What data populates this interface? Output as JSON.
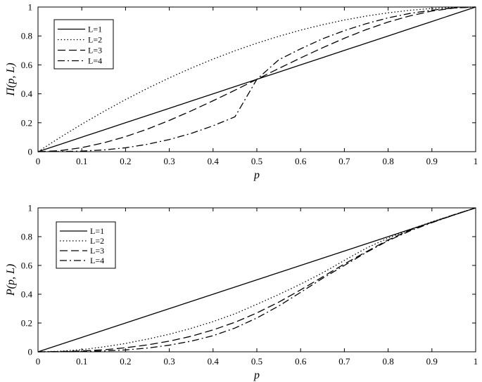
{
  "chart_data": [
    {
      "type": "line",
      "xlabel": "p",
      "ylabel": "Π(p, L)",
      "xlim": [
        0,
        1
      ],
      "ylim": [
        0,
        1
      ],
      "xticks": [
        "0",
        "0.1",
        "0.2",
        "0.3",
        "0.4",
        "0.5",
        "0.6",
        "0.7",
        "0.8",
        "0.9",
        "1"
      ],
      "yticks": [
        "0",
        "0.2",
        "0.4",
        "0.6",
        "0.8",
        "1"
      ],
      "grid": false,
      "legend_position": "top-left",
      "x": [
        0,
        0.05,
        0.1,
        0.15,
        0.2,
        0.25,
        0.3,
        0.35,
        0.4,
        0.45,
        0.5,
        0.55,
        0.6,
        0.65,
        0.7,
        0.75,
        0.8,
        0.85,
        0.9,
        0.95,
        1
      ],
      "series": [
        {
          "name": "L=1",
          "dash": "solid",
          "values": [
            0,
            0.05,
            0.1,
            0.15,
            0.2,
            0.25,
            0.3,
            0.35,
            0.4,
            0.45,
            0.5,
            0.55,
            0.6,
            0.65,
            0.7,
            0.75,
            0.8,
            0.85,
            0.9,
            0.95,
            1
          ]
        },
        {
          "name": "L=2",
          "dash": "dotted",
          "values": [
            0,
            0.0975,
            0.19,
            0.2775,
            0.36,
            0.4375,
            0.51,
            0.5775,
            0.64,
            0.6975,
            0.75,
            0.7975,
            0.84,
            0.8775,
            0.91,
            0.9375,
            0.96,
            0.9775,
            0.99,
            0.9975,
            1
          ]
        },
        {
          "name": "L=3",
          "dash": "dashed",
          "values": [
            0,
            0.007,
            0.028,
            0.061,
            0.104,
            0.156,
            0.216,
            0.282,
            0.352,
            0.425,
            0.5,
            0.575,
            0.648,
            0.718,
            0.784,
            0.844,
            0.896,
            0.939,
            0.972,
            0.993,
            1
          ]
        },
        {
          "name": "L=4",
          "dash": "dashdot",
          "values": [
            0,
            0.001,
            0.004,
            0.012,
            0.027,
            0.051,
            0.084,
            0.126,
            0.179,
            0.241,
            0.5,
            0.635,
            0.711,
            0.78,
            0.837,
            0.885,
            0.925,
            0.956,
            0.978,
            0.994,
            1
          ]
        }
      ]
    },
    {
      "type": "line",
      "xlabel": "p",
      "ylabel": "P(p, L)",
      "xlim": [
        0,
        1
      ],
      "ylim": [
        0,
        1
      ],
      "xticks": [
        "0",
        "0.1",
        "0.2",
        "0.3",
        "0.4",
        "0.5",
        "0.6",
        "0.7",
        "0.8",
        "0.9",
        "1"
      ],
      "yticks": [
        "0",
        "0.2",
        "0.4",
        "0.6",
        "0.8",
        "1"
      ],
      "grid": false,
      "legend_position": "top-left",
      "x": [
        0,
        0.05,
        0.1,
        0.15,
        0.2,
        0.25,
        0.3,
        0.35,
        0.4,
        0.45,
        0.5,
        0.55,
        0.6,
        0.65,
        0.7,
        0.75,
        0.8,
        0.85,
        0.9,
        0.95,
        1
      ],
      "series": [
        {
          "name": "L=1",
          "dash": "solid",
          "values": [
            0,
            0.05,
            0.1,
            0.15,
            0.2,
            0.25,
            0.3,
            0.35,
            0.4,
            0.45,
            0.5,
            0.55,
            0.6,
            0.65,
            0.7,
            0.75,
            0.8,
            0.85,
            0.9,
            0.95,
            1
          ]
        },
        {
          "name": "L=2",
          "dash": "dotted",
          "values": [
            0,
            0.004,
            0.015,
            0.034,
            0.058,
            0.088,
            0.122,
            0.163,
            0.21,
            0.264,
            0.33,
            0.398,
            0.47,
            0.548,
            0.635,
            0.72,
            0.79,
            0.85,
            0.903,
            0.952,
            1
          ]
        },
        {
          "name": "L=3",
          "dash": "dashed",
          "values": [
            0,
            0.002,
            0.006,
            0.014,
            0.028,
            0.048,
            0.074,
            0.108,
            0.152,
            0.205,
            0.27,
            0.345,
            0.43,
            0.52,
            0.61,
            0.695,
            0.777,
            0.845,
            0.9,
            0.952,
            1
          ]
        },
        {
          "name": "L=4",
          "dash": "dashdot",
          "values": [
            0,
            0.0005,
            0.002,
            0.006,
            0.013,
            0.026,
            0.046,
            0.074,
            0.112,
            0.165,
            0.235,
            0.318,
            0.413,
            0.51,
            0.6,
            0.69,
            0.772,
            0.84,
            0.897,
            0.95,
            1
          ]
        }
      ]
    }
  ]
}
